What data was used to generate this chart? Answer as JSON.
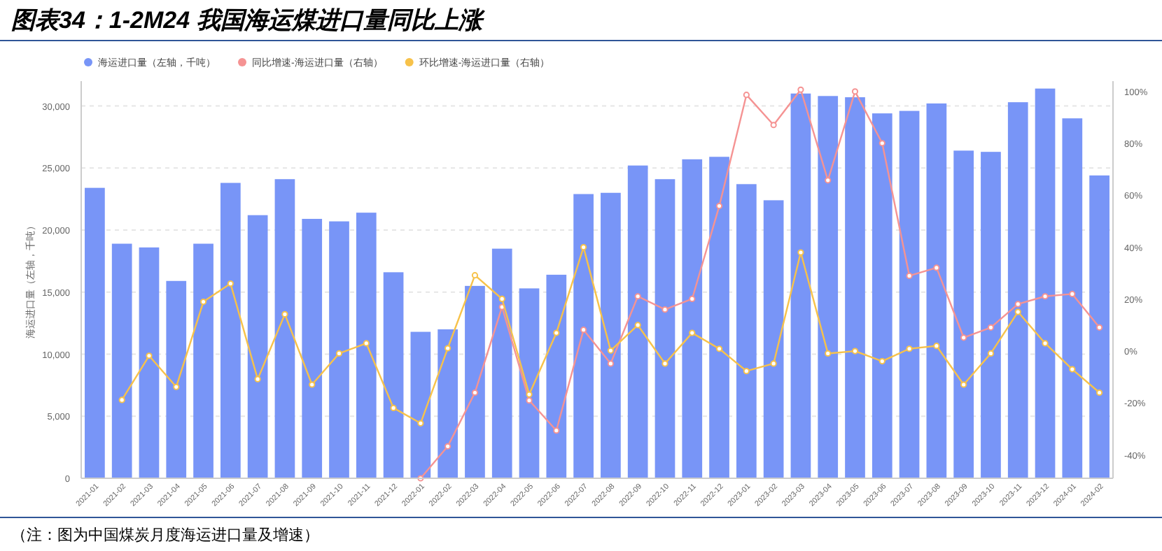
{
  "chart_data": {
    "type": "bar",
    "title": "图表34：1-2M24 我国海运煤进口量同比上涨",
    "ylabel": "海运进口量（左轴，千吨）",
    "annotations": [
      "（注：图为中国煤炭月度海运进口量及增速）"
    ],
    "categories": [
      "2021-01",
      "2021-02",
      "2021-03",
      "2021-04",
      "2021-05",
      "2021-06",
      "2021-07",
      "2021-08",
      "2021-09",
      "2021-10",
      "2021-11",
      "2021-12",
      "2022-01",
      "2022-02",
      "2022-03",
      "2022-04",
      "2022-05",
      "2022-06",
      "2022-07",
      "2022-08",
      "2022-09",
      "2022-10",
      "2022-11",
      "2022-12",
      "2023-01",
      "2023-02",
      "2023-03",
      "2023-04",
      "2023-05",
      "2023-06",
      "2023-07",
      "2023-08",
      "2023-09",
      "2023-10",
      "2023-11",
      "2023-12",
      "2024-01",
      "2024-02"
    ],
    "series": [
      {
        "name": "海运进口量（左轴，千吨）",
        "color": "#7895f7",
        "values": [
          23400,
          18900,
          18600,
          15900,
          18900,
          23800,
          21200,
          24100,
          20900,
          20700,
          21400,
          16600,
          11800,
          12000,
          15500,
          18500,
          15300,
          16400,
          22900,
          23000,
          25200,
          24100,
          25700,
          25900,
          23700,
          22400,
          31000,
          30800,
          30700,
          29400,
          29600,
          30200,
          26400,
          26300,
          30300,
          31400,
          29000,
          24400
        ]
      },
      {
        "type": "line",
        "axis": "y2",
        "name": "同比增速-海运进口量（右轴）",
        "color": "#f59393",
        "values": [
          null,
          null,
          null,
          null,
          null,
          null,
          null,
          null,
          null,
          null,
          null,
          null,
          -49,
          -36.7,
          -16,
          17,
          -19,
          -30.6,
          8.2,
          -4.8,
          21.1,
          16,
          20.1,
          55.9,
          98.7,
          87.1,
          100.7,
          65.8,
          100,
          80.1,
          29,
          32.1,
          5.2,
          9.1,
          18.1,
          21.1,
          22,
          9.1
        ]
      },
      {
        "type": "line",
        "axis": "y2",
        "name": "环比增速-海运进口量（右轴）",
        "color": "#f7c24a",
        "values": [
          null,
          -18.8,
          -1.8,
          -13.8,
          19,
          26,
          -10.8,
          14.2,
          -12.9,
          -0.9,
          3,
          -21.9,
          -27.8,
          1.1,
          29.2,
          20.1,
          -16.7,
          7,
          40,
          0.2,
          10,
          -4.8,
          7,
          0.9,
          -7.7,
          -4.8,
          38,
          -0.9,
          0,
          -3.9,
          0.9,
          2,
          -12.9,
          -0.9,
          15.1,
          3,
          -7,
          -16
        ]
      }
    ],
    "ylim": [
      0,
      32000
    ],
    "yticks": [
      0,
      {
        "value": 5000,
        "label": "5,000"
      },
      {
        "value": 10000,
        "label": "10,000"
      },
      {
        "value": 15000,
        "label": "15,000"
      },
      {
        "value": 20000,
        "label": "20,000"
      },
      {
        "value": 25000,
        "label": "25,000"
      },
      {
        "value": 30000,
        "label": "30,000"
      }
    ],
    "y2lim": [
      -49,
      104
    ],
    "y2ticks": [
      {
        "value": -40,
        "label": "-40%"
      },
      {
        "value": -20,
        "label": "-20%"
      },
      {
        "value": 0,
        "label": "0%"
      },
      {
        "value": 20,
        "label": "20%"
      },
      {
        "value": 40,
        "label": "40%"
      },
      {
        "value": 60,
        "label": "60%"
      },
      {
        "value": 80,
        "label": "80%"
      },
      {
        "value": 100,
        "label": "100%"
      }
    ],
    "grid": "y",
    "legend": "top",
    "marker": "circle"
  }
}
